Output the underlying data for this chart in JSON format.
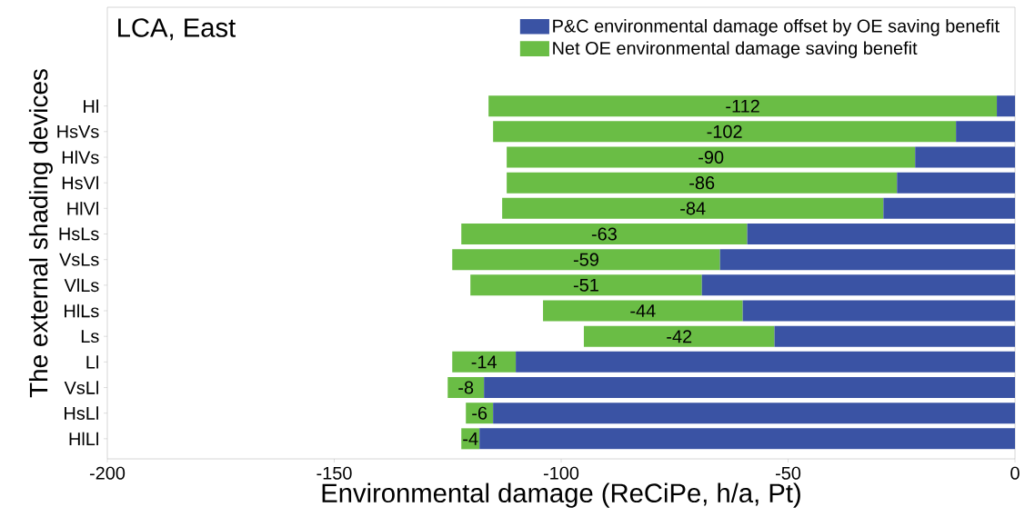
{
  "chart_data": {
    "type": "bar",
    "orientation": "horizontal",
    "stacked": true,
    "title": "LCA, East",
    "xlabel": "Environmental damage (ReCiPe, h/a, Pt)",
    "ylabel": "The external shading devices",
    "categories": [
      "Hl",
      "HsVs",
      "HlVs",
      "HsVl",
      "HlVl",
      "HsLs",
      "VsLs",
      "VlLs",
      "HlLs",
      "Ls",
      "Ll",
      "VsLl",
      "HsLl",
      "HlLl"
    ],
    "series": [
      {
        "name": "P&C environmental damage offset by OE saving benefit",
        "color": "#3a53a4",
        "values": [
          -4,
          -13,
          -22,
          -26,
          -29,
          -59,
          -65,
          -69,
          -60,
          -53,
          -110,
          -117,
          -115,
          -118
        ]
      },
      {
        "name": "Net OE environmental damage saving benefit",
        "color": "#6abd45",
        "values": [
          -112,
          -102,
          -90,
          -86,
          -84,
          -63,
          -59,
          -51,
          -44,
          -42,
          -14,
          -8,
          -6,
          -4
        ],
        "value_labels": [
          "-112",
          "-102",
          "-90",
          "-86",
          "-84",
          "-63",
          "-59",
          "-51",
          "-44",
          "-42",
          "-14",
          "-8",
          "-6",
          "-4"
        ]
      }
    ],
    "xlim": [
      -200,
      0
    ],
    "xticks": [
      -200,
      -150,
      -100,
      -50,
      0
    ],
    "legend": "top right",
    "grid": false
  }
}
